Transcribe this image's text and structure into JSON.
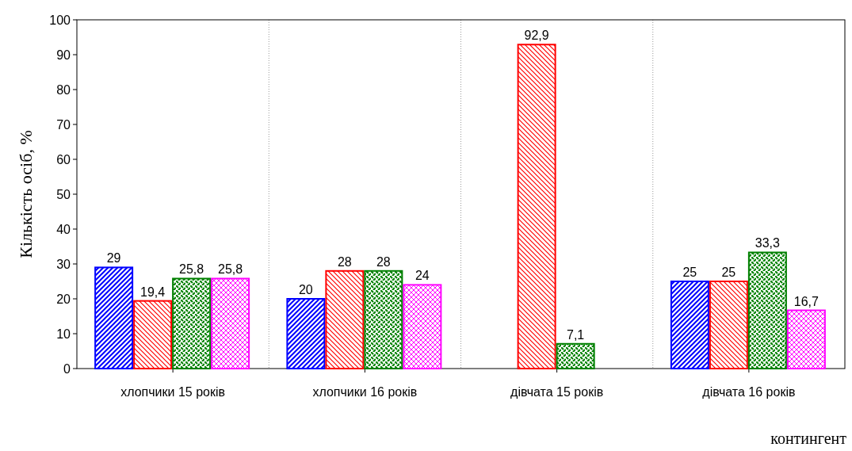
{
  "chart_data": {
    "type": "bar",
    "ylabel": "Кількість осіб, %",
    "xlabel": "контингент",
    "categories": [
      "хлопчики 15 років",
      "хлопчики 16 років",
      "дівчата 15 років",
      "дівчата 16 років"
    ],
    "series": [
      {
        "color": "#0000ff",
        "values": [
          29,
          20,
          null,
          25
        ],
        "value_labels": [
          "29",
          "20",
          null,
          "25"
        ]
      },
      {
        "color": "#ff0000",
        "values": [
          19.4,
          28,
          92.9,
          25
        ],
        "value_labels": [
          "19,4",
          "28",
          "92,9",
          "25"
        ]
      },
      {
        "color": "#008000",
        "values": [
          25.8,
          28,
          7.1,
          33.3
        ],
        "value_labels": [
          "25,8",
          "28",
          "7,1",
          "33,3"
        ]
      },
      {
        "color": "#ff00ff",
        "values": [
          25.8,
          24,
          null,
          16.7
        ],
        "value_labels": [
          "25,8",
          "24",
          null,
          "16,7"
        ]
      }
    ],
    "ylim": [
      0,
      100
    ],
    "yticks": [
      0,
      10,
      20,
      30,
      40,
      50,
      60,
      70,
      80,
      90,
      100
    ],
    "grid": "x"
  }
}
